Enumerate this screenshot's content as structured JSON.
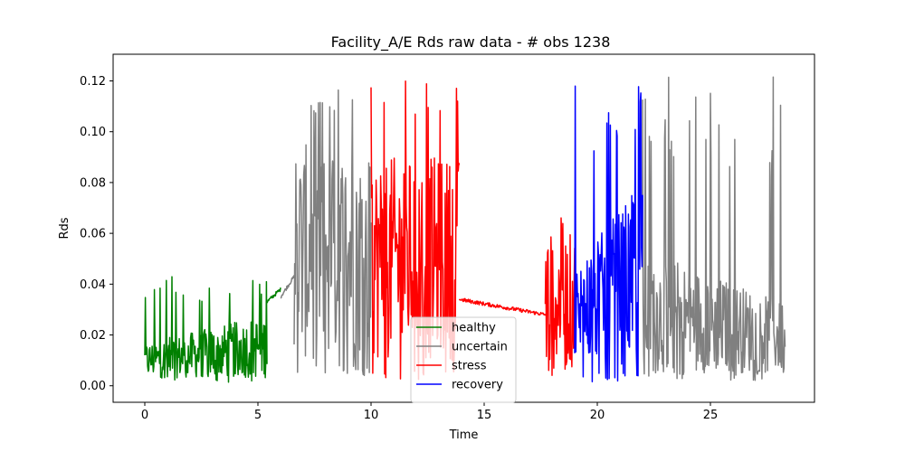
{
  "chart_data": {
    "type": "line",
    "title": "Facility_A/E  Rds raw data - # obs 1238",
    "xlabel": "Time",
    "ylabel": "Rds",
    "xlim": [
      -1.4,
      29.6
    ],
    "ylim": [
      -0.0065,
      0.1305
    ],
    "xticks": [
      0,
      5,
      10,
      15,
      20,
      25
    ],
    "xtick_labels": [
      "0",
      "5",
      "10",
      "15",
      "20",
      "25"
    ],
    "yticks": [
      0.0,
      0.02,
      0.04,
      0.06,
      0.08,
      0.1,
      0.12
    ],
    "ytick_labels": [
      "0.00",
      "0.02",
      "0.04",
      "0.06",
      "0.08",
      "0.10",
      "0.12"
    ],
    "grid": false,
    "legend_position": "lower-center",
    "series": [
      {
        "name": "healthy",
        "color": "#008000",
        "segments": [
          {
            "x_start": 0.0,
            "x_end": 5.4,
            "min": 0.001,
            "max": 0.044,
            "typical_low": 0.003,
            "typical_high": 0.028,
            "trend": "rising"
          },
          {
            "x_start": 5.4,
            "x_end": 6.0,
            "min": 0.033,
            "max": 0.038,
            "typical_low": 0.033,
            "typical_high": 0.038,
            "trend": "rising"
          }
        ]
      },
      {
        "name": "uncertain",
        "color": "#808080",
        "segments": [
          {
            "x_start": 6.0,
            "x_end": 6.6,
            "min": 0.035,
            "max": 0.043,
            "typical_low": 0.035,
            "typical_high": 0.043,
            "trend": "rising"
          },
          {
            "x_start": 6.6,
            "x_end": 10.0,
            "min": 0.004,
            "max": 0.119,
            "typical_low": 0.01,
            "typical_high": 0.095,
            "trend": "flat"
          },
          {
            "x_start": 22.0,
            "x_end": 28.3,
            "min": 0.002,
            "max": 0.127,
            "typical_low": 0.005,
            "typical_high": 0.055,
            "trend": "falling"
          }
        ]
      },
      {
        "name": "stress",
        "color": "#ff0000",
        "segments": [
          {
            "x_start": 10.0,
            "x_end": 13.9,
            "min": 0.002,
            "max": 0.12,
            "typical_low": 0.01,
            "typical_high": 0.09,
            "trend": "flat"
          },
          {
            "x_start": 13.9,
            "x_end": 17.7,
            "min": 0.028,
            "max": 0.034,
            "typical_low": 0.028,
            "typical_high": 0.034,
            "trend": "falling"
          },
          {
            "x_start": 17.7,
            "x_end": 19.0,
            "min": 0.004,
            "max": 0.067,
            "typical_low": 0.006,
            "typical_high": 0.06,
            "trend": "flat"
          }
        ]
      },
      {
        "name": "recovery",
        "color": "#0000ff",
        "segments": [
          {
            "x_start": 19.0,
            "x_end": 22.0,
            "min": 0.001,
            "max": 0.118,
            "typical_low": 0.008,
            "typical_high": 0.08,
            "trend": "rising"
          }
        ]
      }
    ]
  }
}
